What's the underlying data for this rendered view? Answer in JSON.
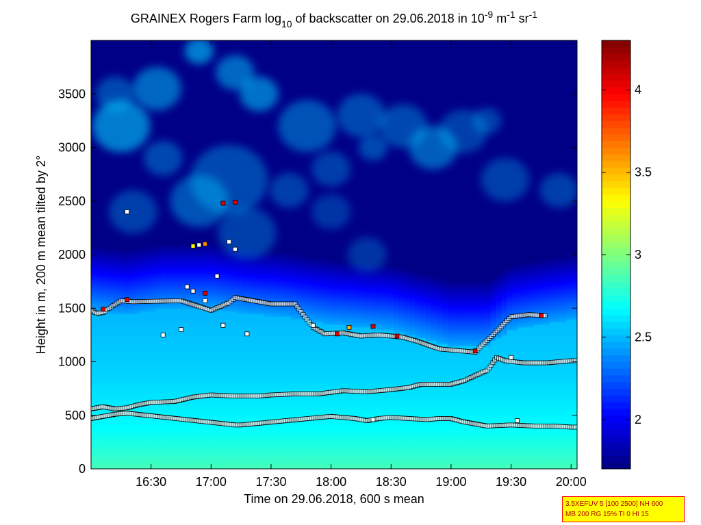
{
  "chart_data": {
    "type": "heatmap",
    "title_main": "GRAINEX Rogers Farm log",
    "title_sub": "10",
    "title_rest": " of backscatter on 29.06.2018 in 10",
    "title_exp1": "-9",
    "title_unit1": " m",
    "title_exp2": "-1",
    "title_unit2": " sr",
    "title_exp3": "-1",
    "xlabel": "Time on 29.06.2018, 600 s mean",
    "ylabel": "Height in m, 200 m mean tilted by 2°",
    "x_range_hours": [
      16.0,
      20.05
    ],
    "ylim": [
      0,
      4000
    ],
    "x_ticks": [
      {
        "h": 16.5,
        "label": "16:30"
      },
      {
        "h": 17.0,
        "label": "17:00"
      },
      {
        "h": 17.5,
        "label": "17:30"
      },
      {
        "h": 18.0,
        "label": "18:00"
      },
      {
        "h": 18.5,
        "label": "18:30"
      },
      {
        "h": 19.0,
        "label": "19:00"
      },
      {
        "h": 19.5,
        "label": "19:30"
      },
      {
        "h": 20.0,
        "label": "20:00"
      }
    ],
    "y_ticks": [
      {
        "v": 0,
        "label": "0"
      },
      {
        "v": 500,
        "label": "500"
      },
      {
        "v": 1000,
        "label": "1000"
      },
      {
        "v": 1500,
        "label": "1500"
      },
      {
        "v": 2000,
        "label": "2000"
      },
      {
        "v": 2500,
        "label": "2500"
      },
      {
        "v": 3000,
        "label": "3000"
      },
      {
        "v": 3500,
        "label": "3500"
      }
    ],
    "colorbar": {
      "range": [
        1.7,
        4.3
      ],
      "colormap": "jet",
      "ticks": [
        {
          "v": 2,
          "label": "2"
        },
        {
          "v": 2.5,
          "label": "2.5"
        },
        {
          "v": 3,
          "label": "3"
        },
        {
          "v": 3.5,
          "label": "3.5"
        },
        {
          "v": 4,
          "label": "4"
        }
      ]
    },
    "boundary_layer_top": [
      [
        16.0,
        1480
      ],
      [
        16.3,
        1440
      ],
      [
        16.6,
        1500
      ],
      [
        17.0,
        1500
      ],
      [
        17.3,
        1450
      ],
      [
        17.6,
        1420
      ],
      [
        18.0,
        1350
      ],
      [
        18.5,
        1300
      ],
      [
        19.0,
        1150
      ],
      [
        19.3,
        1150
      ],
      [
        19.5,
        1300
      ],
      [
        19.75,
        1350
      ],
      [
        20.05,
        1400
      ]
    ],
    "cloud_patches": [
      [
        16.25,
        3200,
        300,
        0.6
      ],
      [
        16.55,
        3550,
        250,
        0.5
      ],
      [
        16.9,
        3900,
        150,
        0.6
      ],
      [
        17.2,
        3700,
        200,
        0.5
      ],
      [
        17.4,
        3500,
        200,
        0.55
      ],
      [
        17.15,
        2700,
        400,
        0.35
      ],
      [
        16.9,
        2500,
        300,
        0.4
      ],
      [
        16.6,
        2900,
        200,
        0.35
      ],
      [
        17.8,
        3200,
        300,
        0.4
      ],
      [
        18.0,
        2800,
        200,
        0.3
      ],
      [
        18.25,
        3300,
        250,
        0.35
      ],
      [
        18.35,
        3000,
        150,
        0.35
      ],
      [
        18.6,
        3200,
        250,
        0.35
      ],
      [
        18.85,
        3000,
        250,
        0.45
      ],
      [
        19.1,
        3150,
        250,
        0.3
      ],
      [
        19.3,
        3250,
        150,
        0.3
      ],
      [
        17.65,
        2600,
        200,
        0.3
      ],
      [
        16.35,
        2400,
        250,
        0.3
      ],
      [
        19.45,
        2700,
        250,
        0.3
      ],
      [
        18.3,
        2000,
        200,
        0.25
      ],
      [
        16.2,
        3500,
        200,
        0.35
      ],
      [
        19.9,
        2600,
        200,
        0.3
      ],
      [
        17.3,
        2200,
        300,
        0.3
      ],
      [
        18.0,
        2400,
        200,
        0.25
      ]
    ],
    "mixing_layer_series": [
      [
        16.0,
        560
      ],
      [
        16.1,
        580
      ],
      [
        16.2,
        560
      ],
      [
        16.3,
        570
      ],
      [
        16.4,
        600
      ],
      [
        16.5,
        620
      ],
      [
        16.7,
        630
      ],
      [
        16.85,
        670
      ],
      [
        17.0,
        690
      ],
      [
        17.2,
        680
      ],
      [
        17.4,
        680
      ],
      [
        17.5,
        690
      ],
      [
        17.7,
        700
      ],
      [
        17.9,
        700
      ],
      [
        18.1,
        730
      ],
      [
        18.3,
        720
      ],
      [
        18.5,
        740
      ],
      [
        18.65,
        760
      ],
      [
        18.75,
        790
      ],
      [
        19.0,
        790
      ],
      [
        19.1,
        820
      ],
      [
        19.2,
        870
      ],
      [
        19.3,
        920
      ],
      [
        19.38,
        1040
      ],
      [
        19.45,
        1010
      ],
      [
        19.6,
        990
      ],
      [
        19.8,
        990
      ],
      [
        20.0,
        1010
      ],
      [
        20.05,
        1010
      ]
    ],
    "lower_layer_series": [
      [
        16.0,
        470
      ],
      [
        16.05,
        480
      ],
      [
        16.2,
        510
      ],
      [
        16.3,
        520
      ],
      [
        17.2,
        410
      ],
      [
        17.25,
        410
      ],
      [
        18.0,
        490
      ],
      [
        18.1,
        480
      ],
      [
        18.2,
        470
      ],
      [
        18.3,
        450
      ],
      [
        18.4,
        470
      ],
      [
        18.5,
        480
      ],
      [
        18.8,
        460
      ],
      [
        18.9,
        470
      ],
      [
        19.0,
        470
      ],
      [
        19.1,
        440
      ],
      [
        19.2,
        420
      ],
      [
        19.3,
        400
      ],
      [
        19.5,
        410
      ],
      [
        19.7,
        400
      ],
      [
        19.85,
        400
      ],
      [
        20.0,
        390
      ],
      [
        20.05,
        390
      ]
    ],
    "upper_layer_series": [
      [
        16.0,
        1480
      ],
      [
        16.05,
        1450
      ],
      [
        16.1,
        1460
      ],
      [
        16.15,
        1500
      ],
      [
        16.25,
        1570
      ],
      [
        16.35,
        1560
      ],
      [
        16.75,
        1570
      ],
      [
        17.0,
        1480
      ],
      [
        17.15,
        1550
      ],
      [
        17.2,
        1600
      ],
      [
        17.5,
        1540
      ],
      [
        17.7,
        1540
      ],
      [
        17.85,
        1320
      ],
      [
        17.95,
        1260
      ],
      [
        18.1,
        1270
      ],
      [
        18.25,
        1240
      ],
      [
        18.4,
        1250
      ],
      [
        18.6,
        1230
      ],
      [
        18.75,
        1180
      ],
      [
        18.9,
        1120
      ],
      [
        19.2,
        1090
      ],
      [
        19.5,
        1420
      ],
      [
        19.65,
        1440
      ],
      [
        19.8,
        1430
      ]
    ],
    "scattered_points": [
      [
        16.3,
        2400,
        "#ffffff"
      ],
      [
        16.85,
        2080,
        "#ffff00"
      ],
      [
        16.9,
        2090,
        "#ffffff"
      ],
      [
        16.95,
        2100,
        "#ff8800"
      ],
      [
        17.1,
        2480,
        "#dd0000"
      ],
      [
        17.2,
        2490,
        "#dd0000"
      ],
      [
        17.15,
        2120,
        "#ffffff"
      ],
      [
        17.2,
        2050,
        "#ffffff"
      ],
      [
        17.05,
        1800,
        "#ffffff"
      ],
      [
        16.8,
        1700,
        "#ffffff"
      ],
      [
        16.85,
        1660,
        "#ffffff"
      ],
      [
        16.95,
        1640,
        "#dd0000"
      ],
      [
        16.95,
        1570,
        "#ffffff"
      ],
      [
        17.1,
        1340,
        "#ffffff"
      ],
      [
        17.3,
        1260,
        "#ffffff"
      ],
      [
        16.6,
        1250,
        "#ffffff"
      ],
      [
        16.75,
        1300,
        "#ffffff"
      ],
      [
        17.85,
        1340,
        "#ffffff"
      ],
      [
        18.05,
        1260,
        "#dd0000"
      ],
      [
        18.15,
        1320,
        "#ffaa00"
      ],
      [
        18.35,
        1330,
        "#dd0000"
      ],
      [
        18.55,
        1240,
        "#dd0000"
      ],
      [
        19.2,
        1100,
        "#dd0000"
      ],
      [
        19.5,
        1040,
        "#ffffff"
      ],
      [
        18.35,
        460,
        "#ffffff"
      ],
      [
        19.55,
        450,
        "#ffffff"
      ],
      [
        16.1,
        1490,
        "#dd0000"
      ],
      [
        16.3,
        1580,
        "#dd0000"
      ],
      [
        19.75,
        1430,
        "#dd0000"
      ]
    ]
  },
  "param_box": {
    "line1": "3.5XEFUV 5 [100 2500] NH 600",
    "line2": "MB 200 RG 15% TI 0 HI 15"
  },
  "colors": {
    "boundary_marker": "#ffffff"
  }
}
